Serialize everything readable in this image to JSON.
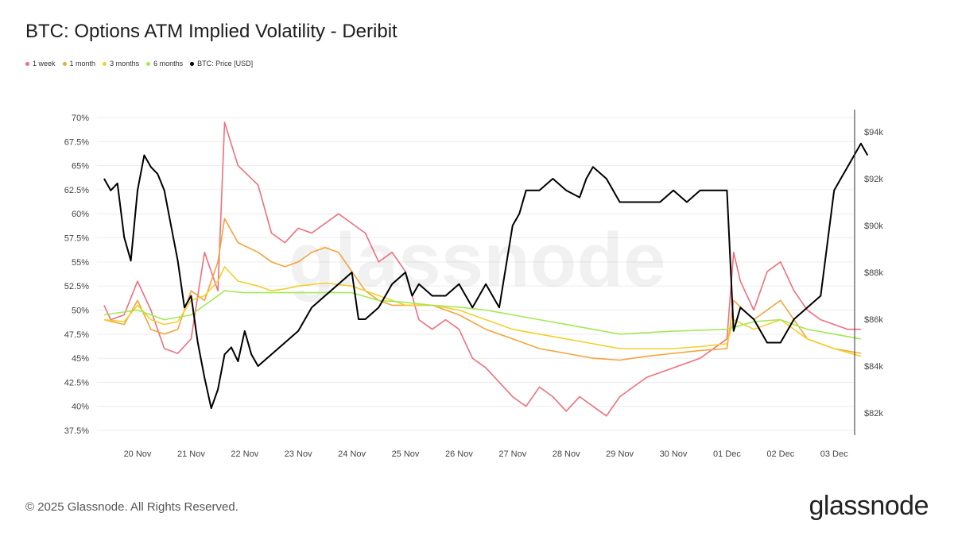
{
  "title": "BTC: Options ATM Implied Volatility - Deribit",
  "footer": "© 2025 Glassnode. All Rights Reserved.",
  "brand": "glassnode",
  "watermark": "glassnode",
  "chart_data": {
    "type": "line",
    "x_ticks": [
      "20 Nov",
      "21 Nov",
      "22 Nov",
      "23 Nov",
      "24 Nov",
      "25 Nov",
      "26 Nov",
      "27 Nov",
      "28 Nov",
      "29 Nov",
      "30 Nov",
      "01 Dec",
      "02 Dec",
      "03 Dec"
    ],
    "y_left": {
      "ticks": [
        "70%",
        "67.5%",
        "65%",
        "62.5%",
        "60%",
        "57.5%",
        "55%",
        "52.5%",
        "50%",
        "47.5%",
        "45%",
        "42.5%",
        "40%",
        "37.5%"
      ],
      "range": [
        37.5,
        70
      ]
    },
    "y_right": {
      "ticks": [
        "$94k",
        "$92k",
        "$90k",
        "$88k",
        "$86k",
        "$84k",
        "$82k"
      ],
      "range": [
        81,
        95
      ]
    },
    "x_range": [
      "19 Nov",
      "03 Dec"
    ],
    "grid": "horizontal",
    "legend_position": "top-left",
    "series": [
      {
        "name": "1 week",
        "color": "#ef6f7f",
        "axis": "left",
        "x": [
          "19 Nov 09:00",
          "19 Nov 12:00",
          "19 Nov 18:00",
          "20 Nov 00:00",
          "20 Nov 06:00",
          "20 Nov 12:00",
          "20 Nov 18:00",
          "21 Nov 00:00",
          "21 Nov 06:00",
          "21 Nov 12:00",
          "21 Nov 15:00",
          "21 Nov 21:00",
          "22 Nov 06:00",
          "22 Nov 12:00",
          "22 Nov 18:00",
          "23 Nov 00:00",
          "23 Nov 06:00",
          "23 Nov 12:00",
          "23 Nov 18:00",
          "24 Nov 00:00",
          "24 Nov 06:00",
          "24 Nov 12:00",
          "24 Nov 18:00",
          "25 Nov 00:00",
          "25 Nov 06:00",
          "25 Nov 12:00",
          "25 Nov 18:00",
          "26 Nov 00:00",
          "26 Nov 06:00",
          "26 Nov 12:00",
          "26 Nov 18:00",
          "27 Nov 00:00",
          "27 Nov 06:00",
          "27 Nov 12:00",
          "27 Nov 18:00",
          "28 Nov 00:00",
          "28 Nov 06:00",
          "28 Nov 12:00",
          "28 Nov 18:00",
          "29 Nov 00:00",
          "29 Nov 06:00",
          "29 Nov 12:00",
          "29 Nov 18:00",
          "30 Nov 00:00",
          "30 Nov 06:00",
          "30 Nov 12:00",
          "30 Nov 18:00",
          "01 Dec 00:00",
          "01 Dec 03:00",
          "01 Dec 06:00",
          "01 Dec 12:00",
          "01 Dec 18:00",
          "02 Dec 00:00",
          "02 Dec 06:00",
          "02 Dec 12:00",
          "02 Dec 18:00",
          "03 Dec 00:00",
          "03 Dec 06:00",
          "03 Dec 12:00"
        ],
        "values": [
          50.5,
          49,
          49.5,
          53,
          50,
          46,
          45.5,
          47,
          56,
          52,
          69.5,
          65,
          63,
          58,
          57,
          58.5,
          58,
          59,
          60,
          59,
          58,
          55,
          56,
          54,
          49,
          48,
          49,
          48,
          45,
          44,
          42.5,
          41,
          40,
          42,
          41,
          39.5,
          41,
          40,
          39,
          41,
          42,
          43,
          43.5,
          44,
          44.5,
          45,
          46,
          47,
          56,
          53,
          50,
          54,
          55,
          52,
          50,
          49,
          48.5,
          48,
          48
        ]
      },
      {
        "name": "1 month",
        "color": "#f5a33b",
        "axis": "left",
        "x": [
          "19 Nov 09:00",
          "19 Nov 18:00",
          "20 Nov 00:00",
          "20 Nov 06:00",
          "20 Nov 12:00",
          "20 Nov 18:00",
          "21 Nov 00:00",
          "21 Nov 06:00",
          "21 Nov 12:00",
          "21 Nov 15:00",
          "21 Nov 21:00",
          "22 Nov 06:00",
          "22 Nov 12:00",
          "22 Nov 18:00",
          "23 Nov 00:00",
          "23 Nov 06:00",
          "23 Nov 12:00",
          "23 Nov 18:00",
          "24 Nov 00:00",
          "24 Nov 06:00",
          "24 Nov 12:00",
          "24 Nov 18:00",
          "25 Nov 00:00",
          "25 Nov 12:00",
          "26 Nov 00:00",
          "26 Nov 12:00",
          "27 Nov 00:00",
          "27 Nov 12:00",
          "28 Nov 00:00",
          "28 Nov 12:00",
          "29 Nov 00:00",
          "29 Nov 12:00",
          "30 Nov 00:00",
          "30 Nov 12:00",
          "01 Dec 00:00",
          "01 Dec 03:00",
          "01 Dec 12:00",
          "02 Dec 00:00",
          "02 Dec 12:00",
          "03 Dec 00:00",
          "03 Dec 12:00"
        ],
        "values": [
          49,
          48.5,
          51,
          48,
          47.5,
          48,
          52,
          51,
          55,
          59.5,
          57,
          56,
          55,
          54.5,
          55,
          56,
          56.5,
          56,
          54,
          52,
          51,
          50.5,
          50.5,
          50.5,
          49.5,
          48,
          47,
          46,
          45.5,
          45,
          44.8,
          45.2,
          45.5,
          45.8,
          46,
          51,
          49,
          51,
          47,
          46,
          45.5
        ]
      },
      {
        "name": "3 months",
        "color": "#f2d02a",
        "axis": "left",
        "x": [
          "19 Nov 09:00",
          "19 Nov 18:00",
          "20 Nov 00:00",
          "20 Nov 06:00",
          "20 Nov 12:00",
          "20 Nov 18:00",
          "21 Nov 00:00",
          "21 Nov 06:00",
          "21 Nov 12:00",
          "21 Nov 15:00",
          "21 Nov 21:00",
          "22 Nov 06:00",
          "22 Nov 12:00",
          "22 Nov 18:00",
          "23 Nov 00:00",
          "23 Nov 12:00",
          "24 Nov 00:00",
          "24 Nov 06:00",
          "24 Nov 12:00",
          "24 Nov 18:00",
          "25 Nov 00:00",
          "25 Nov 12:00",
          "26 Nov 00:00",
          "26 Nov 12:00",
          "27 Nov 00:00",
          "27 Nov 12:00",
          "28 Nov 00:00",
          "28 Nov 12:00",
          "29 Nov 00:00",
          "29 Nov 12:00",
          "30 Nov 00:00",
          "30 Nov 12:00",
          "01 Dec 00:00",
          "01 Dec 03:00",
          "01 Dec 12:00",
          "02 Dec 00:00",
          "02 Dec 12:00",
          "03 Dec 00:00",
          "03 Dec 12:00"
        ],
        "values": [
          49,
          48.8,
          50.5,
          49,
          48.5,
          48.8,
          51,
          51.5,
          53,
          54.5,
          53,
          52.5,
          52,
          52.2,
          52.5,
          52.8,
          52.5,
          52,
          51.5,
          51,
          50.5,
          50.5,
          50,
          49,
          48,
          47.5,
          47,
          46.5,
          46,
          46,
          46,
          46.2,
          46.5,
          49,
          48,
          49,
          47,
          46,
          45.2
        ]
      },
      {
        "name": "6 months",
        "color": "#a4e857",
        "axis": "left",
        "x": [
          "19 Nov 09:00",
          "20 Nov 00:00",
          "20 Nov 12:00",
          "21 Nov 00:00",
          "21 Nov 12:00",
          "21 Nov 15:00",
          "22 Nov 00:00",
          "23 Nov 00:00",
          "24 Nov 00:00",
          "24 Nov 12:00",
          "25 Nov 00:00",
          "25 Nov 12:00",
          "26 Nov 00:00",
          "26 Nov 12:00",
          "27 Nov 00:00",
          "27 Nov 12:00",
          "28 Nov 00:00",
          "28 Nov 12:00",
          "29 Nov 00:00",
          "30 Nov 00:00",
          "01 Dec 00:00",
          "01 Dec 03:00",
          "01 Dec 12:00",
          "02 Dec 00:00",
          "02 Dec 12:00",
          "03 Dec 00:00",
          "03 Dec 12:00"
        ],
        "values": [
          49.5,
          50,
          49,
          49.5,
          51.5,
          52,
          51.8,
          51.8,
          51.8,
          51,
          50.8,
          50.5,
          50.3,
          50,
          49.5,
          49,
          48.5,
          48,
          47.5,
          47.8,
          48,
          48.2,
          48.8,
          49,
          48,
          47.5,
          47
        ]
      },
      {
        "name": "BTC: Price [USD]",
        "color": "#000000",
        "axis": "right",
        "x": [
          "19 Nov 09:00",
          "19 Nov 12:00",
          "19 Nov 15:00",
          "19 Nov 18:00",
          "19 Nov 21:00",
          "20 Nov 00:00",
          "20 Nov 03:00",
          "20 Nov 06:00",
          "20 Nov 09:00",
          "20 Nov 12:00",
          "20 Nov 15:00",
          "20 Nov 18:00",
          "20 Nov 21:00",
          "21 Nov 00:00",
          "21 Nov 03:00",
          "21 Nov 06:00",
          "21 Nov 09:00",
          "21 Nov 12:00",
          "21 Nov 15:00",
          "21 Nov 18:00",
          "21 Nov 21:00",
          "22 Nov 00:00",
          "22 Nov 03:00",
          "22 Nov 06:00",
          "22 Nov 12:00",
          "22 Nov 18:00",
          "23 Nov 00:00",
          "23 Nov 06:00",
          "23 Nov 12:00",
          "23 Nov 18:00",
          "24 Nov 00:00",
          "24 Nov 03:00",
          "24 Nov 06:00",
          "24 Nov 12:00",
          "24 Nov 18:00",
          "25 Nov 00:00",
          "25 Nov 03:00",
          "25 Nov 06:00",
          "25 Nov 12:00",
          "25 Nov 18:00",
          "26 Nov 00:00",
          "26 Nov 06:00",
          "26 Nov 12:00",
          "26 Nov 18:00",
          "27 Nov 00:00",
          "27 Nov 03:00",
          "27 Nov 06:00",
          "27 Nov 12:00",
          "27 Nov 18:00",
          "28 Nov 00:00",
          "28 Nov 06:00",
          "28 Nov 09:00",
          "28 Nov 12:00",
          "28 Nov 18:00",
          "29 Nov 00:00",
          "29 Nov 06:00",
          "29 Nov 12:00",
          "29 Nov 18:00",
          "30 Nov 00:00",
          "30 Nov 06:00",
          "30 Nov 12:00",
          "30 Nov 18:00",
          "01 Dec 00:00",
          "01 Dec 03:00",
          "01 Dec 06:00",
          "01 Dec 12:00",
          "01 Dec 18:00",
          "02 Dec 00:00",
          "02 Dec 06:00",
          "02 Dec 12:00",
          "02 Dec 18:00",
          "03 Dec 00:00",
          "03 Dec 03:00",
          "03 Dec 06:00",
          "03 Dec 12:00",
          "03 Dec 15:00"
        ],
        "values": [
          92,
          91.5,
          91.8,
          89.5,
          88.5,
          91.5,
          93,
          92.5,
          92.2,
          91.5,
          90,
          88.5,
          86.5,
          87,
          85,
          83.5,
          82.2,
          83,
          84.5,
          84.8,
          84.2,
          85.5,
          84.5,
          84,
          84.5,
          85,
          85.5,
          86.5,
          87,
          87.5,
          88,
          86,
          86,
          86.5,
          87.5,
          88,
          87,
          87.5,
          87,
          87,
          87.5,
          86.5,
          87.5,
          86.5,
          90,
          90.5,
          91.5,
          91.5,
          92,
          91.5,
          91.2,
          92,
          92.5,
          92,
          91,
          91,
          91,
          91,
          91.5,
          91,
          91.5,
          91.5,
          91.5,
          85.5,
          86.5,
          86,
          85,
          85,
          86,
          86.5,
          87,
          91.5,
          92,
          92.5,
          93.5,
          93
        ]
      }
    ]
  }
}
